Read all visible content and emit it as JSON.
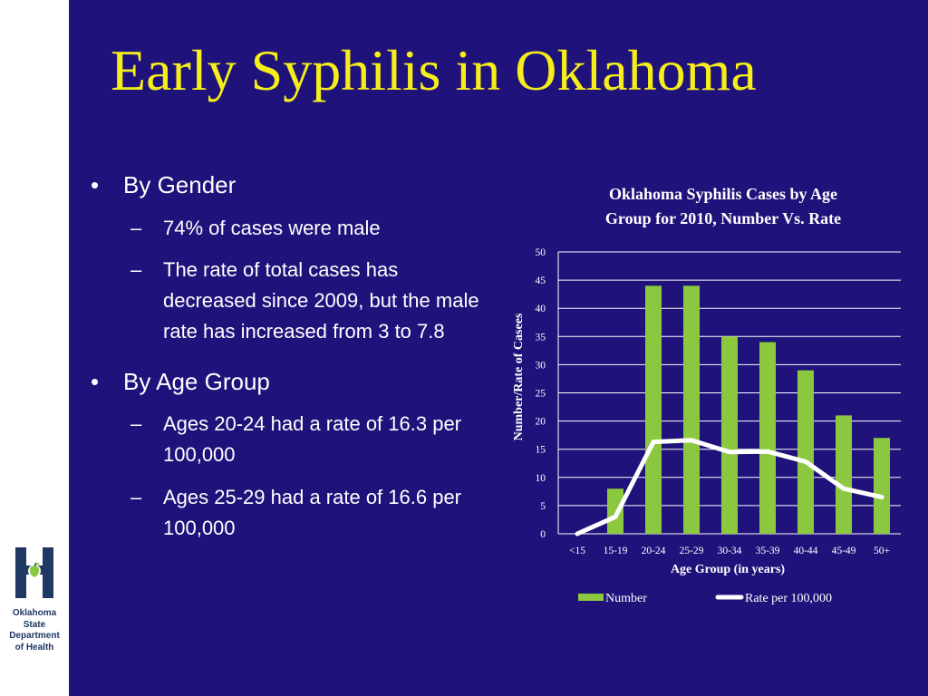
{
  "slide": {
    "title": "Early Syphilis in Oklahoma",
    "background": "#1f127a",
    "title_color": "#f5ee1a",
    "bullets": [
      {
        "text": "By Gender",
        "subs": [
          "74% of cases were male",
          "The rate of total cases has decreased since 2009, but the male rate has increased from 3 to 7.8"
        ]
      },
      {
        "text": "By Age Group",
        "subs": [
          "Ages 20-24 had a rate of 16.3 per 100,000",
          "Ages 25-29 had a rate of 16.6 per 100,000"
        ]
      }
    ]
  },
  "logo": {
    "lines": [
      "Oklahoma",
      "State",
      "Department",
      "of Health"
    ],
    "icon": "apple-h-logo-icon",
    "color": "#1f3864"
  },
  "chart_data": {
    "type": "bar",
    "title_lines": [
      "Oklahoma Syphilis Cases by Age",
      "Group for 2010, Number Vs. Rate"
    ],
    "xlabel": "Age Group (in years)",
    "ylabel": "Number/Rate of Casees",
    "categories": [
      "<15",
      "15-19",
      "20-24",
      "25-29",
      "30-34",
      "35-39",
      "40-44",
      "45-49",
      "50+"
    ],
    "ylim": [
      0,
      50
    ],
    "yticks": [
      0,
      5,
      10,
      15,
      20,
      25,
      30,
      35,
      40,
      45,
      50
    ],
    "grid": true,
    "legend_position": "bottom",
    "series": [
      {
        "name": "Number",
        "kind": "bar",
        "color": "#8cc83f",
        "values": [
          0,
          8,
          44,
          44,
          35,
          34,
          29,
          21,
          17
        ]
      },
      {
        "name": "Rate per 100,000",
        "kind": "line",
        "color": "#ffffff",
        "values": [
          0,
          3,
          16.3,
          16.6,
          14.5,
          14.6,
          12.8,
          8,
          6.5
        ]
      }
    ]
  }
}
